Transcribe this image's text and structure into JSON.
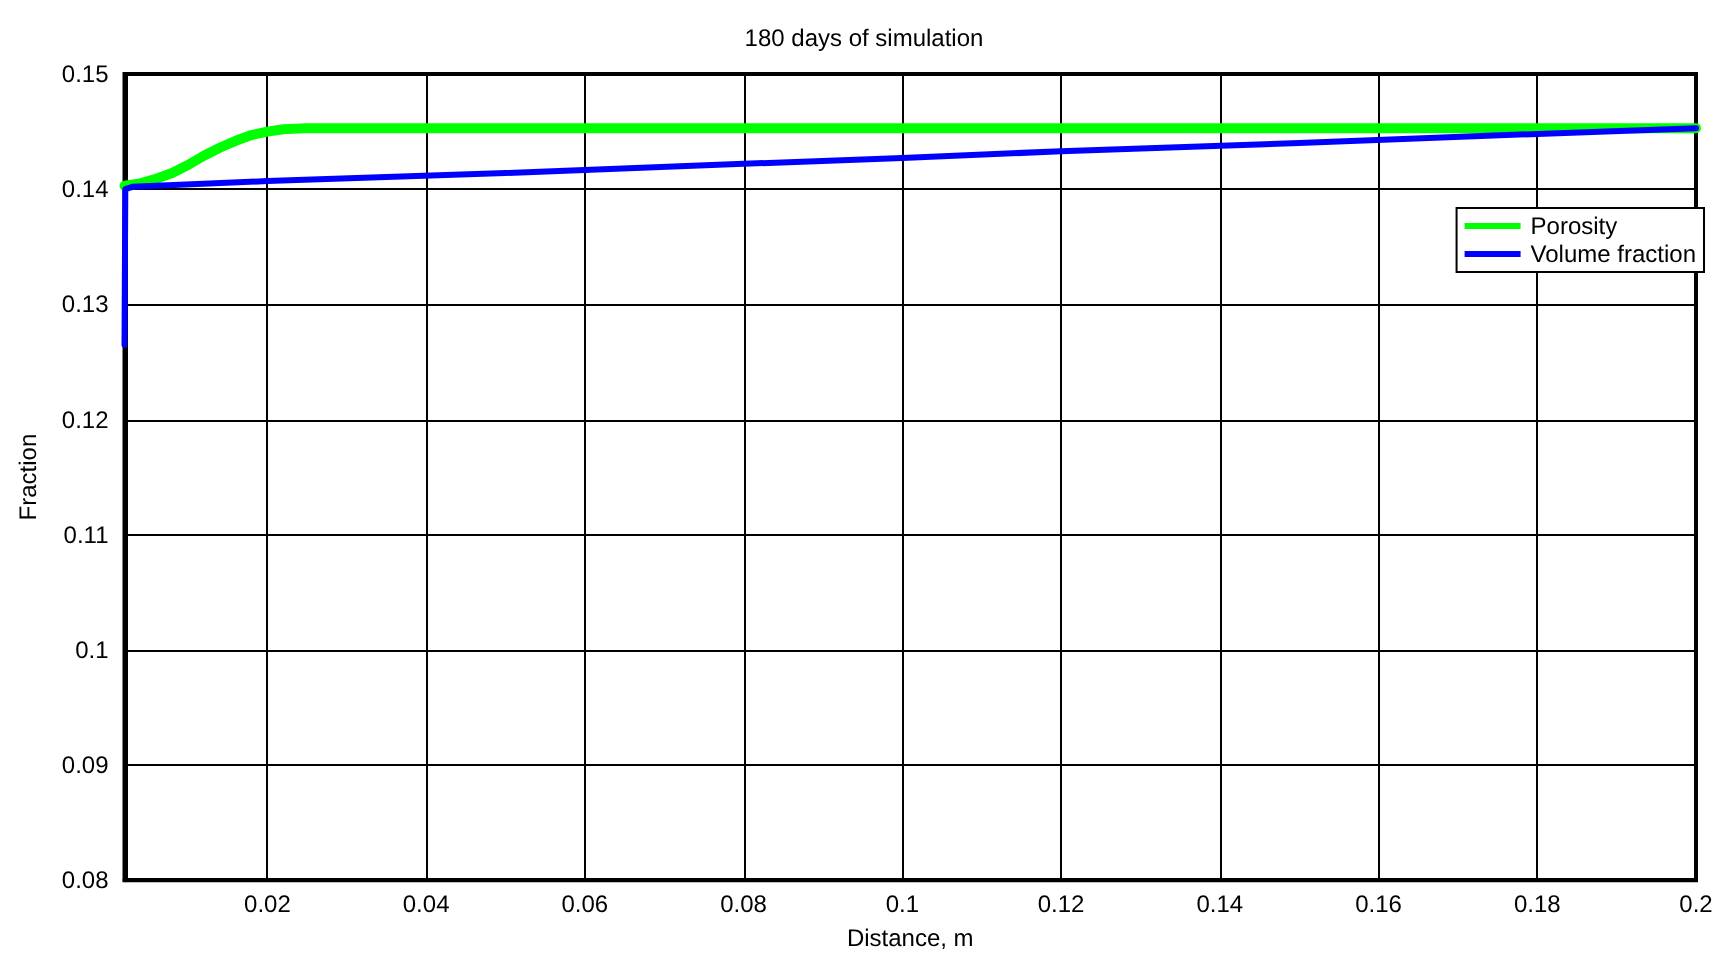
{
  "chart_data": {
    "type": "line",
    "title": "180 days of simulation",
    "xlabel": "Distance, m",
    "ylabel": "Fraction",
    "series": [
      {
        "name": "Porosity",
        "color": "#00ff00",
        "x": [
          0.002,
          0.004,
          0.006,
          0.008,
          0.01,
          0.012,
          0.014,
          0.016,
          0.018,
          0.02,
          0.022,
          0.025,
          0.03,
          0.05,
          0.1,
          0.15,
          0.2
        ],
        "values": [
          0.1403,
          0.1405,
          0.1409,
          0.1414,
          0.1421,
          0.1429,
          0.1436,
          0.1442,
          0.1447,
          0.145,
          0.1452,
          0.1453,
          0.1453,
          0.1453,
          0.1453,
          0.1453,
          0.1453
        ]
      },
      {
        "name": "Volume fraction",
        "color": "#0000ff",
        "x": [
          0.002,
          0.0021,
          0.003,
          0.02,
          0.05,
          0.08,
          0.1,
          0.12,
          0.15,
          0.18,
          0.2
        ],
        "values": [
          0.1265,
          0.14,
          0.1402,
          0.1407,
          0.1414,
          0.1422,
          0.1427,
          0.1433,
          0.144,
          0.1448,
          0.1453
        ]
      }
    ],
    "xlim": [
      0.002,
      0.2
    ],
    "xticks": [
      0.02,
      0.04,
      0.06,
      0.08,
      0.1,
      0.12,
      0.14,
      0.16,
      0.18,
      0.2
    ],
    "ylim": [
      0.08,
      0.15
    ],
    "yticks": [
      0.08,
      0.09,
      0.1,
      0.11,
      0.12,
      0.13,
      0.14,
      0.15
    ],
    "grid": true,
    "legend": "top right",
    "marker": "none",
    "line_style": "solid"
  }
}
